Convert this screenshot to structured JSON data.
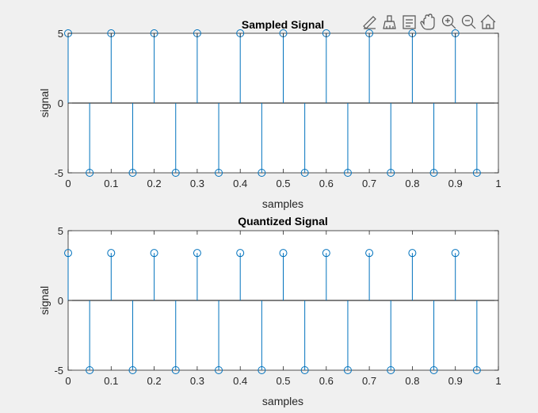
{
  "toolbar": {
    "icons": [
      "edit-plot-icon",
      "brush-icon",
      "data-tips-icon",
      "pan-hand-icon",
      "zoom-in-icon",
      "zoom-out-icon",
      "home-icon"
    ]
  },
  "colors": {
    "background": "#f0f0f0",
    "axes_background": "#ffffff",
    "stem": "#0072bd",
    "axis": "#262626"
  },
  "chart_data": [
    {
      "type": "stem",
      "title": "Sampled Signal",
      "xlabel": "samples",
      "ylabel": "signal",
      "xlim": [
        0,
        1
      ],
      "ylim": [
        -5,
        5
      ],
      "xticks": [
        0,
        0.1,
        0.2,
        0.3,
        0.4,
        0.5,
        0.6,
        0.7,
        0.8,
        0.9,
        1
      ],
      "xtick_labels": [
        "0",
        "0.1",
        "0.2",
        "0.3",
        "0.4",
        "0.5",
        "0.6",
        "0.7",
        "0.8",
        "0.9",
        "1"
      ],
      "yticks": [
        -5,
        0,
        5
      ],
      "ytick_labels": [
        "-5",
        "0",
        "5"
      ],
      "grid": false,
      "x": [
        0,
        0.05,
        0.1,
        0.15,
        0.2,
        0.25,
        0.3,
        0.35,
        0.4,
        0.45,
        0.5,
        0.55,
        0.6,
        0.65,
        0.7,
        0.75,
        0.8,
        0.85,
        0.9,
        0.95
      ],
      "y": [
        5,
        -5,
        5,
        -5,
        5,
        -5,
        5,
        -5,
        5,
        -5,
        5,
        -5,
        5,
        -5,
        5,
        -5,
        5,
        -5,
        5,
        -5
      ]
    },
    {
      "type": "stem",
      "title": "Quantized Signal",
      "xlabel": "samples",
      "ylabel": "signal",
      "xlim": [
        0,
        1
      ],
      "ylim": [
        -5,
        5
      ],
      "xticks": [
        0,
        0.1,
        0.2,
        0.3,
        0.4,
        0.5,
        0.6,
        0.7,
        0.8,
        0.9,
        1
      ],
      "xtick_labels": [
        "0",
        "0.1",
        "0.2",
        "0.3",
        "0.4",
        "0.5",
        "0.6",
        "0.7",
        "0.8",
        "0.9",
        "1"
      ],
      "yticks": [
        -5,
        0,
        5
      ],
      "ytick_labels": [
        "-5",
        "0",
        "5"
      ],
      "grid": false,
      "x": [
        0,
        0.05,
        0.1,
        0.15,
        0.2,
        0.25,
        0.3,
        0.35,
        0.4,
        0.45,
        0.5,
        0.55,
        0.6,
        0.65,
        0.7,
        0.75,
        0.8,
        0.85,
        0.9,
        0.95
      ],
      "y": [
        3.4,
        -5,
        3.4,
        -5,
        3.4,
        -5,
        3.4,
        -5,
        3.4,
        -5,
        3.4,
        -5,
        3.4,
        -5,
        3.4,
        -5,
        3.4,
        -5,
        3.4,
        -5
      ]
    }
  ]
}
